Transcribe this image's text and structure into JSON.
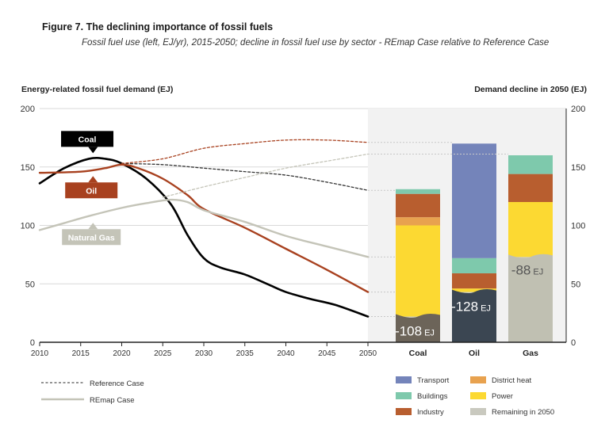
{
  "figure": {
    "title": "Figure 7. The declining importance of fossil fuels",
    "subtitle": "Fossil fuel use (left, EJ/yr), 2015-2050; decline in fossil fuel use by sector - REmap Case relative to Reference Case"
  },
  "chart_data": [
    {
      "type": "line",
      "title": "Energy-related fossil fuel demand (EJ)",
      "xlabel": "",
      "ylabel": "",
      "xlim": [
        2010,
        2050
      ],
      "ylim": [
        0,
        200
      ],
      "x_ticks": [
        2010,
        2015,
        2020,
        2025,
        2030,
        2035,
        2040,
        2045,
        2050
      ],
      "y_ticks": [
        0,
        50,
        100,
        150,
        200
      ],
      "grid": true,
      "series": [
        {
          "name": "Coal",
          "case": "REmap Case",
          "color": "#000000",
          "points": [
            [
              2010,
              136
            ],
            [
              2013,
              149
            ],
            [
              2016,
              157
            ],
            [
              2018,
              157
            ],
            [
              2020,
              153
            ],
            [
              2023,
              140
            ],
            [
              2026,
              118
            ],
            [
              2028,
              92
            ],
            [
              2030,
              72
            ],
            [
              2032,
              64
            ],
            [
              2035,
              58
            ],
            [
              2038,
              49
            ],
            [
              2040,
              43
            ],
            [
              2043,
              37
            ],
            [
              2046,
              32
            ],
            [
              2050,
              22
            ]
          ]
        },
        {
          "name": "Oil",
          "case": "REmap Case",
          "color": "#a8411f",
          "points": [
            [
              2010,
              145
            ],
            [
              2015,
              146
            ],
            [
              2018,
              149
            ],
            [
              2020,
              152
            ],
            [
              2022,
              149
            ],
            [
              2025,
              140
            ],
            [
              2028,
              126
            ],
            [
              2030,
              114
            ],
            [
              2035,
              98
            ],
            [
              2040,
              80
            ],
            [
              2045,
              62
            ],
            [
              2050,
              43
            ]
          ]
        },
        {
          "name": "Natural Gas",
          "case": "REmap Case",
          "color": "#c4c4b8",
          "points": [
            [
              2010,
              96
            ],
            [
              2013,
              102
            ],
            [
              2016,
              108
            ],
            [
              2020,
              115
            ],
            [
              2023,
              119
            ],
            [
              2026,
              122
            ],
            [
              2028,
              120
            ],
            [
              2030,
              113
            ],
            [
              2035,
              103
            ],
            [
              2040,
              91
            ],
            [
              2045,
              82
            ],
            [
              2050,
              73
            ]
          ]
        },
        {
          "name": "Coal",
          "case": "Reference Case",
          "color": "#333333",
          "points": [
            [
              2020,
              153
            ],
            [
              2025,
              152
            ],
            [
              2030,
              149
            ],
            [
              2035,
              146
            ],
            [
              2040,
              143
            ],
            [
              2045,
              137
            ],
            [
              2050,
              130
            ]
          ]
        },
        {
          "name": "Oil",
          "case": "Reference Case",
          "color": "#a8411f",
          "points": [
            [
              2020,
              153
            ],
            [
              2025,
              157
            ],
            [
              2030,
              166
            ],
            [
              2035,
              170
            ],
            [
              2040,
              173
            ],
            [
              2045,
              173
            ],
            [
              2050,
              171
            ]
          ]
        },
        {
          "name": "Natural Gas",
          "case": "Reference Case",
          "color": "#c4c4b8",
          "points": [
            [
              2025,
              124
            ],
            [
              2030,
              133
            ],
            [
              2035,
              141
            ],
            [
              2040,
              149
            ],
            [
              2045,
              155
            ],
            [
              2050,
              161
            ]
          ]
        }
      ],
      "labels": [
        {
          "text": "Coal",
          "color": "#000000",
          "x": 2015.8,
          "y": 174,
          "target": [
            2016.5,
            157
          ]
        },
        {
          "text": "Oil",
          "color": "#a8411f",
          "x": 2016.3,
          "y": 130,
          "target": [
            2016.5,
            146
          ]
        },
        {
          "text": "Natural Gas",
          "color": "#c4c4b8",
          "x": 2016.3,
          "y": 90,
          "target": [
            2016.5,
            106
          ]
        }
      ]
    },
    {
      "type": "bar",
      "stacked": true,
      "title": "Demand decline in 2050 (EJ)",
      "ylim": [
        0,
        200
      ],
      "y_ticks": [
        0,
        50,
        100,
        150,
        200
      ],
      "categories": [
        "Coal",
        "Oil",
        "Gas"
      ],
      "series": [
        {
          "name": "Remaining in 2050",
          "color": "#c9c9bf",
          "values": [
            22,
            43,
            73
          ]
        },
        {
          "name": "Power",
          "color": "#fcd932",
          "values": [
            78,
            3,
            47
          ]
        },
        {
          "name": "District heat",
          "color": "#e8a24f",
          "values": [
            7,
            0,
            0
          ]
        },
        {
          "name": "Industry",
          "color": "#b85e2f",
          "values": [
            20,
            13,
            24
          ]
        },
        {
          "name": "Buildings",
          "color": "#7ec9ac",
          "values": [
            4,
            13,
            16
          ]
        },
        {
          "name": "Transport",
          "color": "#7484ba",
          "values": [
            0,
            98,
            0
          ]
        }
      ],
      "overlay_colors": [
        "#6c6459",
        "#3b4652",
        "#c0c0b2"
      ],
      "declines": [
        "-108",
        "-128",
        "-88"
      ],
      "decline_unit": "EJ"
    }
  ],
  "legend": {
    "cases": [
      {
        "name": "Reference Case",
        "style": "dashed"
      },
      {
        "name": "REmap Case",
        "style": "solid"
      }
    ],
    "sectors_left": [
      "Transport",
      "Buildings",
      "Industry"
    ],
    "sectors_right": [
      "District heat",
      "Power",
      "Remaining in 2050"
    ]
  }
}
